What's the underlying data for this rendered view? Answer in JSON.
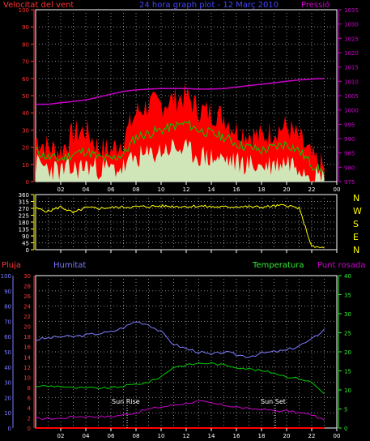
{
  "header": {
    "left_label": "Velocitat del vent",
    "title": "24 hora graph plot - 12 Març 2010",
    "right_label": "Pressió"
  },
  "x_ticks": [
    "02",
    "04",
    "06",
    "08",
    "10",
    "12",
    "14",
    "16",
    "18",
    "20",
    "22",
    "00"
  ],
  "direction_axis_letters": [
    "N",
    "W",
    "S",
    "E",
    "N"
  ],
  "bottom_headers": {
    "rain": "Pluja",
    "humidity": "Humitat",
    "temperature": "Temperatura",
    "dew_point": "Punt rosada"
  },
  "annotations": {
    "sunrise": "Sun Rise",
    "sunset": "Sun Set"
  },
  "colors": {
    "wind_max": "#ff0000",
    "wind_avg": "#00cc00",
    "wind_min": "#ccffcc",
    "pressure": "#cc00cc",
    "direction": "#ffff00",
    "rain": "#ff0000",
    "humidity": "#7b7bff",
    "temperature": "#00cc00",
    "dew_point": "#cc00cc",
    "left_axis_1": "#ff3333",
    "right_axis_1": "#cc00cc",
    "dir_axis": "#ffff00",
    "rain_axis": "#ff3333",
    "hum_axis": "#7b7bff",
    "temp_axis": "#33ee33"
  },
  "chart_data": [
    {
      "type": "line",
      "name": "wind-pressure",
      "y_left_ticks": [
        0,
        10,
        20,
        30,
        40,
        50,
        60,
        70,
        80,
        90,
        100
      ],
      "y_right_ticks": [
        975,
        980,
        985,
        990,
        995,
        1000,
        1005,
        1010,
        1015,
        1020,
        1025,
        1030,
        1035
      ],
      "ylim_left": [
        0,
        100
      ],
      "ylim_right": [
        975,
        1035
      ],
      "x_hours": [
        1,
        2,
        3,
        4,
        5,
        6,
        7,
        8,
        9,
        10,
        11,
        12,
        13,
        14,
        15,
        16,
        17,
        18,
        19,
        20,
        21,
        22,
        23,
        24
      ],
      "series": [
        {
          "key": "wind_max",
          "values": [
            25,
            20,
            18,
            28,
            30,
            20,
            18,
            25,
            40,
            45,
            45,
            48,
            50,
            42,
            40,
            38,
            30,
            28,
            26,
            30,
            32,
            25,
            14,
            8
          ]
        },
        {
          "key": "wind_avg",
          "values": [
            18,
            14,
            13,
            16,
            18,
            14,
            13,
            16,
            26,
            28,
            30,
            32,
            34,
            30,
            28,
            26,
            22,
            20,
            18,
            20,
            22,
            18,
            10,
            5
          ]
        },
        {
          "key": "wind_min",
          "values": [
            10,
            8,
            6,
            7,
            9,
            8,
            7,
            8,
            14,
            15,
            18,
            20,
            18,
            15,
            14,
            13,
            11,
            10,
            9,
            10,
            12,
            10,
            5,
            2
          ]
        },
        {
          "key": "pressure",
          "values": [
            1002,
            1002,
            1002.5,
            1003,
            1003.5,
            1004.5,
            1005.5,
            1006.5,
            1007,
            1007.3,
            1007.5,
            1007.5,
            1007.5,
            1007.3,
            1007.3,
            1007.5,
            1008,
            1008.5,
            1009,
            1009.5,
            1010,
            1010.5,
            1010.8,
            1011
          ]
        }
      ]
    },
    {
      "type": "line",
      "name": "wind-direction",
      "y_left_ticks": [
        0,
        45,
        90,
        135,
        180,
        225,
        270,
        315,
        360
      ],
      "ylim": [
        0,
        360
      ],
      "x_hours": [
        1,
        2,
        3,
        4,
        5,
        6,
        7,
        8,
        9,
        10,
        11,
        12,
        13,
        14,
        15,
        16,
        17,
        18,
        19,
        20,
        21,
        22,
        23,
        24
      ],
      "series": [
        {
          "key": "direction",
          "values": [
            270,
            250,
            280,
            240,
            275,
            270,
            275,
            278,
            280,
            282,
            285,
            283,
            282,
            285,
            280,
            278,
            282,
            280,
            278,
            285,
            290,
            270,
            20,
            10
          ]
        }
      ]
    },
    {
      "type": "line",
      "name": "rain-hum-temp",
      "y_rain_ticks": [
        0,
        2,
        4,
        6,
        8,
        10,
        12,
        14,
        16,
        18,
        20,
        22,
        24,
        26,
        28,
        30
      ],
      "y_hum_ticks": [
        0,
        10,
        20,
        30,
        40,
        50,
        60,
        70,
        80,
        90,
        100
      ],
      "y_temp_ticks": [
        0,
        5,
        10,
        15,
        20,
        25,
        30,
        35,
        40
      ],
      "ylim_hum": [
        0,
        100
      ],
      "ylim_temp": [
        0,
        40
      ],
      "x_hours": [
        1,
        2,
        3,
        4,
        5,
        6,
        7,
        8,
        9,
        10,
        11,
        12,
        13,
        14,
        15,
        16,
        17,
        18,
        19,
        20,
        21,
        22,
        23,
        24
      ],
      "series": [
        {
          "key": "humidity",
          "values": [
            58,
            59,
            60,
            60,
            61,
            62,
            63,
            66,
            70,
            68,
            63,
            55,
            52,
            50,
            48,
            50,
            48,
            47,
            49,
            50,
            51,
            54,
            58,
            65
          ]
        },
        {
          "key": "temperature",
          "values": [
            11,
            11,
            11,
            10.5,
            10.5,
            10.5,
            10.5,
            11,
            11.5,
            12,
            13.5,
            16,
            16.5,
            17,
            17,
            16.5,
            16,
            15.5,
            15,
            14.5,
            13.5,
            13,
            12,
            9
          ]
        },
        {
          "key": "dew_point",
          "values": [
            2.5,
            2.5,
            2.5,
            3,
            3,
            3,
            3,
            3.5,
            4,
            5,
            5.5,
            6,
            6.5,
            7,
            6.5,
            6,
            5.5,
            5,
            5,
            4.5,
            4.5,
            4,
            3.5,
            2
          ]
        },
        {
          "key": "rain",
          "values": [
            0,
            0,
            0,
            0,
            0,
            0,
            0,
            0,
            0,
            0,
            0,
            0,
            0,
            0,
            0,
            0,
            0,
            0,
            0,
            0,
            0,
            0,
            0,
            0
          ]
        }
      ]
    }
  ]
}
